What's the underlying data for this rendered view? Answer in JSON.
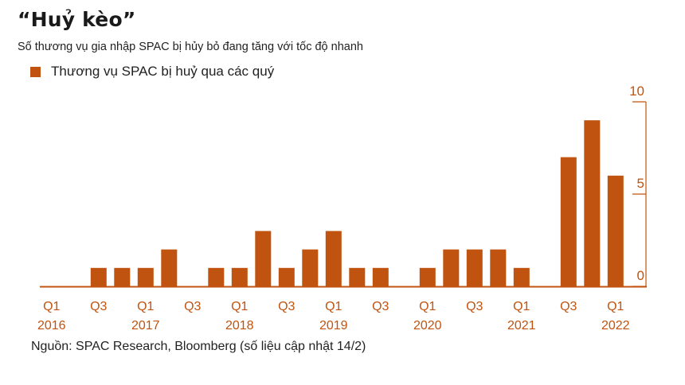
{
  "header": {
    "title": "“Huỷ kèo”",
    "subtitle": "Số thương vụ gia nhập SPAC bị hủy bỏ đang tăng với tốc độ nhanh"
  },
  "footer": {
    "source": "Nguồn: SPAC Research, Bloomberg (số liệu cập nhật 14/2)"
  },
  "colors": {
    "bar": "#c0530f",
    "axis": "#c0530f",
    "baseline": "#c0530f"
  },
  "chart_data": {
    "type": "bar",
    "legend": [
      "Thương vụ SPAC bị huỷ qua các quý"
    ],
    "ylim": [
      0,
      10
    ],
    "yticks": [
      {
        "value": 10,
        "label": "10"
      },
      {
        "value": 5,
        "label": "5"
      },
      {
        "value": 0,
        "label": "0"
      }
    ],
    "series": [
      {
        "name": "Thương vụ SPAC bị huỷ qua các quý",
        "values": [
          0,
          0,
          1,
          1,
          1,
          2,
          0,
          1,
          1,
          3,
          1,
          2,
          3,
          1,
          1,
          0,
          1,
          2,
          2,
          2,
          1,
          0,
          7,
          9,
          6
        ]
      }
    ],
    "categories": [
      "Q1 2016",
      "Q2 2016",
      "Q3 2016",
      "Q4 2016",
      "Q1 2017",
      "Q2 2017",
      "Q3 2017",
      "Q4 2017",
      "Q1 2018",
      "Q2 2018",
      "Q3 2018",
      "Q4 2018",
      "Q1 2019",
      "Q2 2019",
      "Q3 2019",
      "Q4 2019",
      "Q1 2020",
      "Q2 2020",
      "Q3 2020",
      "Q4 2020",
      "Q1 2021",
      "Q2 2021",
      "Q3 2021",
      "Q4 2021",
      "Q1 2022"
    ],
    "xtick_labels": [
      {
        "index": 0,
        "quarter": "Q1",
        "year": "2016"
      },
      {
        "index": 2,
        "quarter": "Q3",
        "year": ""
      },
      {
        "index": 4,
        "quarter": "Q1",
        "year": "2017"
      },
      {
        "index": 6,
        "quarter": "Q3",
        "year": ""
      },
      {
        "index": 8,
        "quarter": "Q1",
        "year": "2018"
      },
      {
        "index": 10,
        "quarter": "Q3",
        "year": ""
      },
      {
        "index": 12,
        "quarter": "Q1",
        "year": "2019"
      },
      {
        "index": 14,
        "quarter": "Q3",
        "year": ""
      },
      {
        "index": 16,
        "quarter": "Q1",
        "year": "2020"
      },
      {
        "index": 18,
        "quarter": "Q3",
        "year": ""
      },
      {
        "index": 20,
        "quarter": "Q1",
        "year": "2021"
      },
      {
        "index": 22,
        "quarter": "Q3",
        "year": ""
      },
      {
        "index": 24,
        "quarter": "Q1",
        "year": "2022"
      }
    ],
    "grid": false,
    "legend_position": "top-left",
    "yaxis_position": "right"
  }
}
